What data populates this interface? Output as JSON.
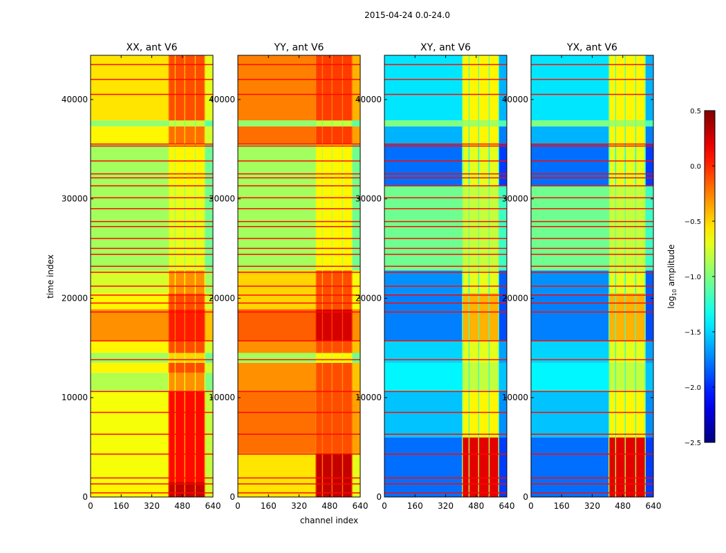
{
  "chart_data": {
    "type": "heatmap",
    "title": "2015-04-24 0.0-24.0",
    "xlabel": "channel index",
    "ylabel": "time index",
    "xlim": [
      0,
      640
    ],
    "ylim": [
      0,
      44450
    ],
    "xticks": [
      0,
      160,
      320,
      480,
      640
    ],
    "yticks": [
      0,
      10000,
      20000,
      30000,
      40000
    ],
    "colorbar": {
      "label_main": "log",
      "label_sub": "10",
      "label_rest": " amplitude",
      "range": [
        -2.5,
        0.5
      ],
      "ticks": [
        0.5,
        0.0,
        -0.5,
        -1.0,
        -1.5,
        -2.0,
        -2.5
      ],
      "tick_labels": [
        "0.5",
        "0.0",
        "−0.5",
        "−1.0",
        "−1.5",
        "−2.0",
        "−2.5"
      ],
      "colormap": "jet"
    },
    "block_channels": [
      [
        410,
        440
      ],
      [
        445,
        490
      ],
      [
        495,
        545
      ],
      [
        550,
        595
      ]
    ],
    "flagged_times": [
      400,
      1300,
      1900,
      4300,
      6300,
      8500,
      10600,
      13800,
      15700,
      18600,
      19500,
      20300,
      21200,
      22600,
      23200,
      24400,
      25000,
      26000,
      27200,
      27700,
      29000,
      30100,
      31300,
      32100,
      32500,
      33800,
      35300,
      35500,
      40500,
      42000,
      43500
    ],
    "panels": [
      {
        "title": "XX, ant V6",
        "bands": [
          [
            0,
            1500,
            -0.6,
            0.3
          ],
          [
            1500,
            10600,
            -0.65,
            0.1
          ],
          [
            10600,
            12500,
            -0.85,
            -0.3
          ],
          [
            12500,
            13500,
            -0.6,
            -0.1
          ],
          [
            13500,
            14500,
            -0.9,
            -0.5
          ],
          [
            14500,
            15700,
            -0.6,
            -0.1
          ],
          [
            15700,
            18900,
            -0.3,
            0.05
          ],
          [
            18900,
            20500,
            -0.6,
            -0.1
          ],
          [
            20500,
            22800,
            -0.75,
            -0.3
          ],
          [
            22800,
            31300,
            -0.9,
            -0.7
          ],
          [
            31300,
            35500,
            -0.9,
            -0.6
          ],
          [
            35500,
            37300,
            -0.6,
            -0.2
          ],
          [
            37300,
            37900,
            -0.95,
            -0.8
          ],
          [
            37900,
            44450,
            -0.55,
            -0.1
          ]
        ]
      },
      {
        "title": "YY, ant V6",
        "bands": [
          [
            0,
            4400,
            -0.55,
            0.3
          ],
          [
            4400,
            10600,
            -0.2,
            -0.1
          ],
          [
            10600,
            13500,
            -0.3,
            -0.1
          ],
          [
            13500,
            14500,
            -0.9,
            -0.6
          ],
          [
            14500,
            15700,
            -0.3,
            -0.1
          ],
          [
            15700,
            18900,
            -0.15,
            0.25
          ],
          [
            18900,
            22800,
            -0.5,
            -0.1
          ],
          [
            22800,
            35500,
            -0.9,
            -0.6
          ],
          [
            35500,
            37300,
            -0.2,
            -0.05
          ],
          [
            37300,
            37900,
            -0.95,
            -0.8
          ],
          [
            37900,
            44450,
            -0.25,
            -0.05
          ]
        ]
      },
      {
        "title": "XY, ant V6",
        "bands": [
          [
            0,
            6000,
            -1.8,
            0.2
          ],
          [
            6000,
            10600,
            -1.55,
            -0.6
          ],
          [
            10600,
            13500,
            -1.4,
            -0.8
          ],
          [
            13500,
            15700,
            -1.5,
            -0.7
          ],
          [
            15700,
            20500,
            -1.75,
            -0.4
          ],
          [
            20500,
            22800,
            -1.7,
            -0.7
          ],
          [
            22800,
            31300,
            -1.05,
            -0.8
          ],
          [
            31300,
            35500,
            -1.8,
            -0.7
          ],
          [
            35500,
            37300,
            -1.6,
            -0.6
          ],
          [
            37300,
            37900,
            -1.0,
            -0.9
          ],
          [
            37900,
            44450,
            -1.45,
            -0.6
          ]
        ]
      },
      {
        "title": "YX, ant V6",
        "bands": [
          [
            0,
            6000,
            -1.8,
            0.2
          ],
          [
            6000,
            10600,
            -1.55,
            -0.6
          ],
          [
            10600,
            13500,
            -1.4,
            -0.8
          ],
          [
            13500,
            15700,
            -1.5,
            -0.7
          ],
          [
            15700,
            20500,
            -1.75,
            -0.4
          ],
          [
            20500,
            22800,
            -1.7,
            -0.7
          ],
          [
            22800,
            31300,
            -1.05,
            -0.8
          ],
          [
            31300,
            35500,
            -1.8,
            -0.7
          ],
          [
            35500,
            37300,
            -1.6,
            -0.6
          ],
          [
            37300,
            37900,
            -1.0,
            -0.9
          ],
          [
            37900,
            44450,
            -1.45,
            -0.6
          ]
        ]
      }
    ]
  }
}
